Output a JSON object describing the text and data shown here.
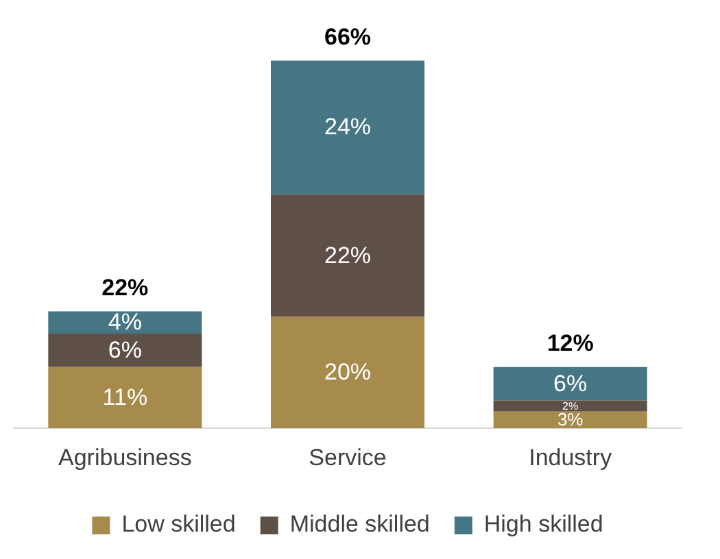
{
  "chart_data": {
    "type": "bar",
    "stacked": true,
    "legend": "bottom",
    "categories": [
      "Agribusiness",
      "Service",
      "Industry"
    ],
    "series": [
      {
        "name": "Low skilled",
        "color": "#a68b4c",
        "values": [
          11,
          20,
          3
        ],
        "value_labels": [
          "11%",
          "20%",
          "3%"
        ]
      },
      {
        "name": "Middle skilled",
        "color": "#5e5046",
        "values": [
          6,
          22,
          2
        ],
        "value_labels": [
          "6%",
          "22%",
          "2%"
        ]
      },
      {
        "name": "High skilled",
        "color": "#467684",
        "values": [
          4,
          24,
          6
        ],
        "value_labels": [
          "4%",
          "24%",
          "6%"
        ]
      }
    ],
    "totals": [
      "22%",
      "66%",
      "12%"
    ]
  }
}
